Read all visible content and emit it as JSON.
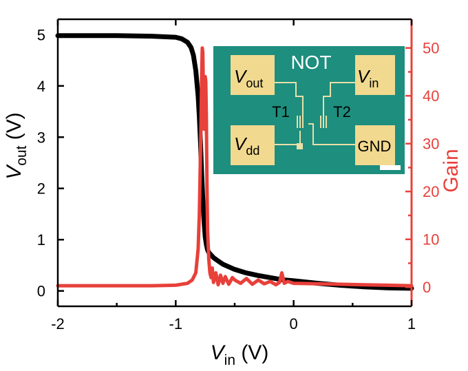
{
  "chart_data": {
    "type": "line",
    "x_axis": {
      "label_main": "V",
      "label_sub": "in",
      "label_unit": " (V)",
      "range": [
        -2,
        1
      ],
      "ticks": [
        "-2",
        "-1",
        "0",
        "1"
      ]
    },
    "y_axis_left": {
      "label_main": "V",
      "label_sub": "out",
      "label_unit": " (V)",
      "range": [
        -0.3,
        5.3
      ],
      "ticks": [
        "0",
        "1",
        "2",
        "3",
        "4",
        "5"
      ],
      "color": "#000000"
    },
    "y_axis_right": {
      "label": "Gain",
      "range": [
        -4,
        56
      ],
      "ticks": [
        "0",
        "10",
        "20",
        "30",
        "40",
        "50"
      ],
      "color": "#e8403a"
    },
    "series": [
      {
        "axis": "left",
        "color": "#000000",
        "x": [
          -2.0,
          -1.5,
          -1.2,
          -1.0,
          -0.95,
          -0.9,
          -0.87,
          -0.85,
          -0.83,
          -0.81,
          -0.8,
          -0.79,
          -0.78,
          -0.77,
          -0.76,
          -0.75,
          -0.74,
          -0.73,
          -0.72,
          -0.7,
          -0.68,
          -0.65,
          -0.6,
          -0.5,
          -0.4,
          -0.3,
          -0.2,
          -0.1,
          0.0,
          0.2,
          0.4,
          0.6,
          0.8,
          1.0
        ],
        "y": [
          4.98,
          4.98,
          4.97,
          4.95,
          4.92,
          4.85,
          4.75,
          4.6,
          4.3,
          3.8,
          3.4,
          2.9,
          2.3,
          1.8,
          1.35,
          1.05,
          0.9,
          0.8,
          0.75,
          0.7,
          0.65,
          0.6,
          0.52,
          0.42,
          0.35,
          0.3,
          0.26,
          0.22,
          0.2,
          0.15,
          0.11,
          0.08,
          0.06,
          0.05
        ]
      },
      {
        "axis": "right",
        "color": "#e8403a",
        "x": [
          -2.0,
          -1.5,
          -1.2,
          -1.0,
          -0.9,
          -0.86,
          -0.83,
          -0.81,
          -0.8,
          -0.79,
          -0.785,
          -0.78,
          -0.775,
          -0.77,
          -0.765,
          -0.76,
          -0.755,
          -0.75,
          -0.745,
          -0.74,
          -0.735,
          -0.73,
          -0.72,
          -0.71,
          -0.7,
          -0.69,
          -0.68,
          -0.66,
          -0.64,
          -0.62,
          -0.6,
          -0.58,
          -0.55,
          -0.52,
          -0.5,
          -0.45,
          -0.4,
          -0.35,
          -0.3,
          -0.25,
          -0.2,
          -0.15,
          -0.12,
          -0.1,
          -0.08,
          -0.05,
          0.0,
          0.2,
          0.4,
          0.6,
          0.8,
          1.0
        ],
        "y": [
          0.3,
          0.3,
          0.3,
          0.4,
          0.8,
          1.5,
          3.0,
          8.0,
          15.0,
          28.0,
          36.0,
          44.0,
          50.0,
          49.0,
          40.0,
          33.0,
          36.0,
          44.0,
          43.0,
          35.0,
          22.0,
          12.0,
          6.0,
          3.0,
          2.0,
          4.0,
          1.0,
          3.0,
          0.5,
          2.5,
          0.8,
          2.2,
          0.6,
          2.0,
          1.5,
          0.8,
          1.8,
          0.6,
          1.5,
          0.7,
          1.2,
          0.5,
          1.0,
          3.0,
          0.8,
          1.2,
          0.8,
          0.7,
          0.6,
          0.5,
          0.4,
          0.3
        ]
      }
    ],
    "inset": {
      "title": "NOT",
      "pad_vout_main": "V",
      "pad_vout_sub": "out",
      "pad_vin_main": "V",
      "pad_vin_sub": "in",
      "pad_vdd_main": "V",
      "pad_vdd_sub": "dd",
      "pad_gnd": "GND",
      "t1": "T1",
      "t2": "T2",
      "bg_color": "#1e8e7e",
      "pad_color": "#f1d98f"
    }
  }
}
